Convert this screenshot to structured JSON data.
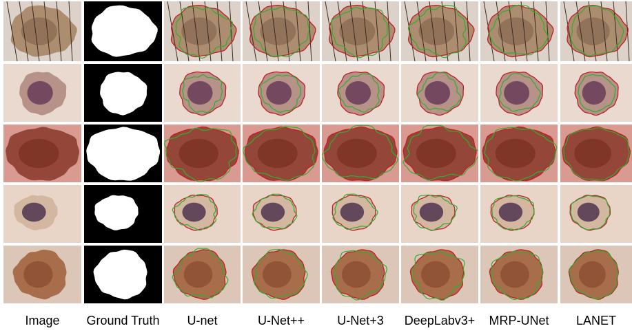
{
  "columns": [
    "Image",
    "Ground Truth",
    "U-net",
    "U-Net++",
    "U-Net+3",
    "DeepLabv3+",
    "MRP-UNet",
    "LANET"
  ]
}
